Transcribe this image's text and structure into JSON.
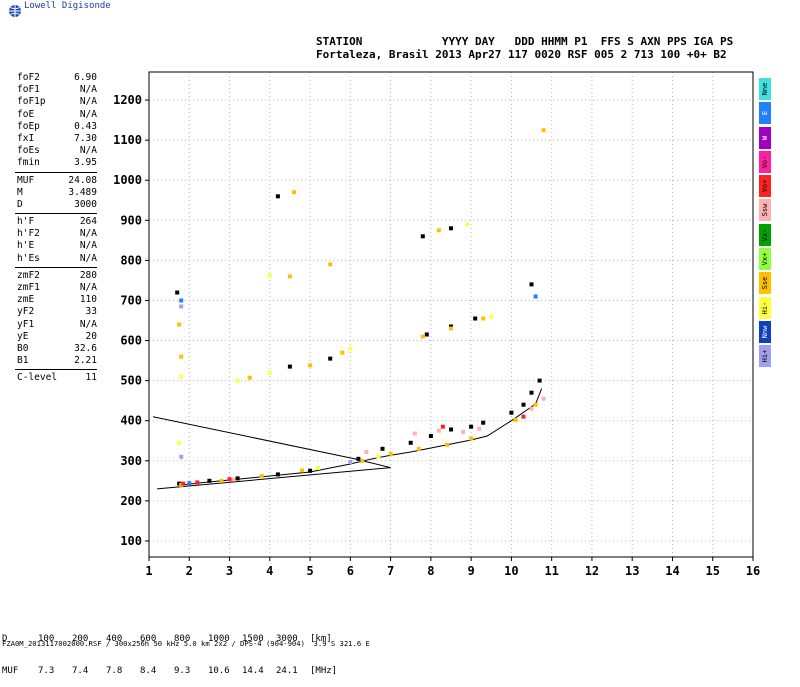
{
  "logo_text": "Lowell Digisonde",
  "header": {
    "line1": "STATION            YYYY DAY   DDD HHMM P1  FFS S AXN PPS IGA PS",
    "line2": "Fortaleza, Brasil 2013 Apr27 117 0020 RSF 005 2 713 100 +0+ B2"
  },
  "params": [
    {
      "k": "foF2",
      "v": "6.90"
    },
    {
      "k": "foF1",
      "v": "N/A"
    },
    {
      "k": "foF1p",
      "v": "N/A"
    },
    {
      "k": "foE",
      "v": "N/A"
    },
    {
      "k": "foEp",
      "v": "0.43"
    },
    {
      "k": "fxI",
      "v": "7.30"
    },
    {
      "k": "foEs",
      "v": "N/A"
    },
    {
      "k": "fmin",
      "v": "3.95"
    },
    {
      "k": "MUF",
      "v": "24.08"
    },
    {
      "k": "M",
      "v": "3.489"
    },
    {
      "k": "D",
      "v": "3000"
    },
    {
      "k": "h'F",
      "v": "264"
    },
    {
      "k": "h'F2",
      "v": "N/A"
    },
    {
      "k": "h'E",
      "v": "N/A"
    },
    {
      "k": "h'Es",
      "v": "N/A"
    },
    {
      "k": "zmF2",
      "v": "280"
    },
    {
      "k": "zmF1",
      "v": "N/A"
    },
    {
      "k": "zmE",
      "v": "110"
    },
    {
      "k": "yF2",
      "v": "33"
    },
    {
      "k": "yF1",
      "v": "N/A"
    },
    {
      "k": "yE",
      "v": "20"
    },
    {
      "k": "B0",
      "v": "32.6"
    },
    {
      "k": "B1",
      "v": "2.21"
    },
    {
      "k": "C-level",
      "v": "11"
    }
  ],
  "legend": [
    {
      "label": "Nne",
      "color": "#40e0e0"
    },
    {
      "label": "E",
      "color": "#2080ff"
    },
    {
      "label": "W",
      "color": "#a000c0"
    },
    {
      "label": "Vo-",
      "color": "#ff20a0"
    },
    {
      "label": "Vo+",
      "color": "#ff2020"
    },
    {
      "label": "Ssw",
      "color": "#ffb0b0"
    },
    {
      "label": "Vx-",
      "color": "#00a000"
    },
    {
      "label": "Vx+",
      "color": "#90ff40"
    },
    {
      "label": "Sse",
      "color": "#ffc000"
    },
    {
      "label": "Hi-",
      "color": "#ffff40"
    },
    {
      "label": "Nnw",
      "color": "#1040c0"
    },
    {
      "label": "Hi+",
      "color": "#a0a0f0"
    }
  ],
  "muf_table": {
    "d_label": "D",
    "d_values": [
      "100",
      "200",
      "400",
      "600",
      "800",
      "1000",
      "1500",
      "3000"
    ],
    "d_unit": "[km]",
    "m_label": "MUF",
    "m_values": [
      "7.3",
      "7.4",
      "7.8",
      "8.4",
      "9.3",
      "10.6",
      "14.4",
      "24.1"
    ],
    "m_unit": "[MHz]"
  },
  "footer": "FZA0M_2013117002000.RSF / 300x256h 50 kHz 5.0 km 2x2 / DPS-4 (904-904)  3.9 S 321.6 E",
  "chart_data": {
    "type": "scatter",
    "xlabel": "",
    "ylabel": "",
    "xlim": [
      1,
      16
    ],
    "ylim": [
      60,
      1270
    ],
    "x_ticks": [
      "1",
      "2",
      "3",
      "4",
      "5",
      "6",
      "7",
      "8",
      "9",
      "10",
      "11",
      "12",
      "13",
      "14",
      "15",
      "16"
    ],
    "y_ticks": [
      "100",
      "200",
      "300",
      "400",
      "500",
      "600",
      "700",
      "800",
      "900",
      "1000",
      "1100",
      "1200"
    ],
    "trace": [
      [
        1.75,
        239
      ],
      [
        2.3,
        245
      ],
      [
        3.0,
        252
      ],
      [
        4.0,
        262
      ],
      [
        5.0,
        272
      ],
      [
        6.0,
        292
      ],
      [
        6.5,
        304
      ],
      [
        7.0,
        314
      ],
      [
        7.5,
        322
      ],
      [
        8.0,
        332
      ],
      [
        8.5,
        342
      ],
      [
        9.0,
        352
      ],
      [
        9.4,
        362
      ],
      [
        10.0,
        400
      ],
      [
        10.4,
        428
      ],
      [
        10.6,
        442
      ],
      [
        10.75,
        480
      ]
    ],
    "series": [
      {
        "color": "#000000",
        "points": [
          [
            1.75,
            243
          ],
          [
            2.5,
            250
          ],
          [
            3.2,
            256
          ],
          [
            4.2,
            266
          ],
          [
            5.0,
            275
          ],
          [
            6.2,
            305
          ],
          [
            6.8,
            330
          ],
          [
            7.5,
            345
          ],
          [
            8.0,
            362
          ],
          [
            8.5,
            378
          ],
          [
            9.0,
            385
          ],
          [
            9.3,
            395
          ],
          [
            10.0,
            420
          ],
          [
            10.3,
            440
          ],
          [
            10.5,
            470
          ],
          [
            10.7,
            500
          ],
          [
            4.5,
            535
          ],
          [
            5.5,
            555
          ],
          [
            7.9,
            615
          ],
          [
            8.5,
            635
          ],
          [
            9.1,
            655
          ],
          [
            7.8,
            860
          ],
          [
            8.5,
            880
          ],
          [
            10.5,
            740
          ],
          [
            4.2,
            960
          ],
          [
            1.7,
            720
          ]
        ]
      },
      {
        "color": "#ffc000",
        "points": [
          [
            1.8,
            240
          ],
          [
            2.8,
            250
          ],
          [
            3.8,
            262
          ],
          [
            4.8,
            276
          ],
          [
            6.3,
            300
          ],
          [
            7.0,
            318
          ],
          [
            7.7,
            330
          ],
          [
            8.4,
            340
          ],
          [
            9.0,
            356
          ],
          [
            10.1,
            402
          ],
          [
            10.6,
            440
          ],
          [
            3.5,
            507
          ],
          [
            5.0,
            538
          ],
          [
            5.8,
            570
          ],
          [
            7.8,
            610
          ],
          [
            8.5,
            630
          ],
          [
            9.3,
            655
          ],
          [
            4.5,
            760
          ],
          [
            5.5,
            790
          ],
          [
            8.2,
            875
          ],
          [
            4.6,
            970
          ],
          [
            10.8,
            1125
          ],
          [
            1.75,
            640
          ],
          [
            1.8,
            560
          ]
        ]
      },
      {
        "color": "#ffff40",
        "points": [
          [
            3.2,
            500
          ],
          [
            4.0,
            520
          ],
          [
            6.0,
            580
          ],
          [
            8.9,
            890
          ],
          [
            9.5,
            660
          ],
          [
            1.8,
            510
          ],
          [
            1.75,
            345
          ],
          [
            6.7,
            310
          ],
          [
            5.2,
            282
          ],
          [
            4.0,
            762
          ]
        ]
      },
      {
        "color": "#ffb0b0",
        "points": [
          [
            7.6,
            368
          ],
          [
            8.2,
            375
          ],
          [
            8.8,
            372
          ],
          [
            10.8,
            455
          ],
          [
            3.1,
            253
          ],
          [
            6.4,
            322
          ],
          [
            9.2,
            380
          ],
          [
            10.5,
            430
          ]
        ]
      },
      {
        "color": "#ff2020",
        "points": [
          [
            1.85,
            243
          ],
          [
            3.0,
            254
          ],
          [
            10.3,
            410
          ],
          [
            2.2,
            246
          ],
          [
            8.3,
            385
          ]
        ]
      },
      {
        "color": "#2080ff",
        "points": [
          [
            1.8,
            700
          ],
          [
            10.6,
            710
          ],
          [
            2.0,
            244
          ]
        ]
      },
      {
        "color": "#a0a0f0",
        "points": [
          [
            1.8,
            685
          ],
          [
            1.8,
            310
          ],
          [
            6.0,
            297
          ]
        ]
      }
    ]
  }
}
